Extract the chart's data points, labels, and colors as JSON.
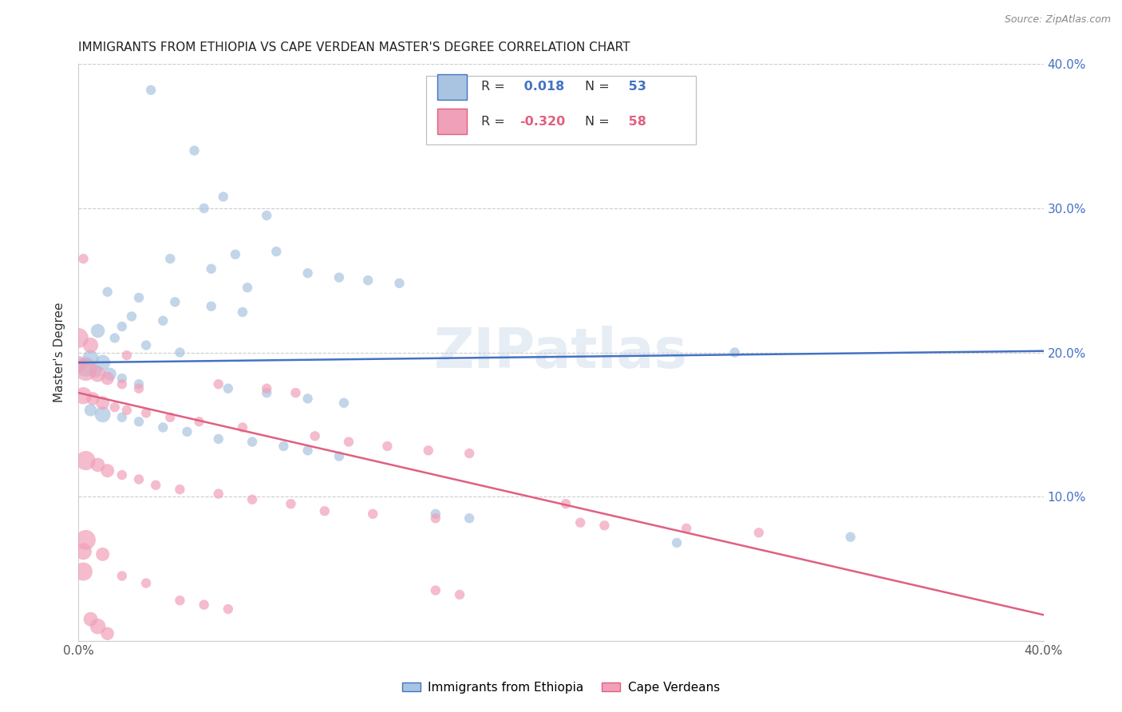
{
  "title": "IMMIGRANTS FROM ETHIOPIA VS CAPE VERDEAN MASTER'S DEGREE CORRELATION CHART",
  "source": "Source: ZipAtlas.com",
  "ylabel": "Master's Degree",
  "legend_label1": "Immigrants from Ethiopia",
  "legend_label2": "Cape Verdeans",
  "R1": 0.018,
  "N1": 53,
  "R2": -0.32,
  "N2": 58,
  "xlim": [
    0.0,
    0.4
  ],
  "ylim": [
    0.0,
    0.4
  ],
  "color_blue": "#a8c4e0",
  "color_pink": "#f0a0b8",
  "line_color_blue": "#4472c4",
  "line_color_pink": "#e06080",
  "watermark": "ZIPatlas",
  "blue_line": [
    0.0,
    0.193,
    0.4,
    0.201
  ],
  "pink_line": [
    0.0,
    0.172,
    0.4,
    0.018
  ],
  "blue_points": [
    [
      0.03,
      0.382
    ],
    [
      0.048,
      0.34
    ],
    [
      0.06,
      0.308
    ],
    [
      0.078,
      0.295
    ],
    [
      0.052,
      0.3
    ],
    [
      0.082,
      0.27
    ],
    [
      0.065,
      0.268
    ],
    [
      0.038,
      0.265
    ],
    [
      0.055,
      0.258
    ],
    [
      0.095,
      0.255
    ],
    [
      0.108,
      0.252
    ],
    [
      0.12,
      0.25
    ],
    [
      0.133,
      0.248
    ],
    [
      0.07,
      0.245
    ],
    [
      0.012,
      0.242
    ],
    [
      0.025,
      0.238
    ],
    [
      0.04,
      0.235
    ],
    [
      0.055,
      0.232
    ],
    [
      0.068,
      0.228
    ],
    [
      0.022,
      0.225
    ],
    [
      0.035,
      0.222
    ],
    [
      0.018,
      0.218
    ],
    [
      0.008,
      0.215
    ],
    [
      0.015,
      0.21
    ],
    [
      0.028,
      0.205
    ],
    [
      0.042,
      0.2
    ],
    [
      0.272,
      0.2
    ],
    [
      0.005,
      0.196
    ],
    [
      0.01,
      0.193
    ],
    [
      0.003,
      0.19
    ],
    [
      0.007,
      0.187
    ],
    [
      0.013,
      0.185
    ],
    [
      0.018,
      0.182
    ],
    [
      0.025,
      0.178
    ],
    [
      0.062,
      0.175
    ],
    [
      0.078,
      0.172
    ],
    [
      0.095,
      0.168
    ],
    [
      0.11,
      0.165
    ],
    [
      0.005,
      0.16
    ],
    [
      0.01,
      0.157
    ],
    [
      0.018,
      0.155
    ],
    [
      0.025,
      0.152
    ],
    [
      0.035,
      0.148
    ],
    [
      0.045,
      0.145
    ],
    [
      0.058,
      0.14
    ],
    [
      0.072,
      0.138
    ],
    [
      0.085,
      0.135
    ],
    [
      0.095,
      0.132
    ],
    [
      0.108,
      0.128
    ],
    [
      0.148,
      0.088
    ],
    [
      0.162,
      0.085
    ],
    [
      0.32,
      0.072
    ],
    [
      0.248,
      0.068
    ]
  ],
  "pink_points": [
    [
      0.002,
      0.265
    ],
    [
      0.0,
      0.21
    ],
    [
      0.005,
      0.205
    ],
    [
      0.02,
      0.198
    ],
    [
      0.0,
      0.192
    ],
    [
      0.003,
      0.188
    ],
    [
      0.008,
      0.185
    ],
    [
      0.012,
      0.182
    ],
    [
      0.018,
      0.178
    ],
    [
      0.025,
      0.175
    ],
    [
      0.002,
      0.17
    ],
    [
      0.006,
      0.168
    ],
    [
      0.01,
      0.165
    ],
    [
      0.015,
      0.162
    ],
    [
      0.02,
      0.16
    ],
    [
      0.028,
      0.158
    ],
    [
      0.038,
      0.155
    ],
    [
      0.05,
      0.152
    ],
    [
      0.068,
      0.148
    ],
    [
      0.058,
      0.178
    ],
    [
      0.078,
      0.175
    ],
    [
      0.09,
      0.172
    ],
    [
      0.098,
      0.142
    ],
    [
      0.112,
      0.138
    ],
    [
      0.128,
      0.135
    ],
    [
      0.145,
      0.132
    ],
    [
      0.162,
      0.13
    ],
    [
      0.003,
      0.125
    ],
    [
      0.008,
      0.122
    ],
    [
      0.012,
      0.118
    ],
    [
      0.018,
      0.115
    ],
    [
      0.025,
      0.112
    ],
    [
      0.032,
      0.108
    ],
    [
      0.042,
      0.105
    ],
    [
      0.058,
      0.102
    ],
    [
      0.072,
      0.098
    ],
    [
      0.088,
      0.095
    ],
    [
      0.202,
      0.095
    ],
    [
      0.102,
      0.09
    ],
    [
      0.122,
      0.088
    ],
    [
      0.148,
      0.085
    ],
    [
      0.208,
      0.082
    ],
    [
      0.218,
      0.08
    ],
    [
      0.252,
      0.078
    ],
    [
      0.282,
      0.075
    ],
    [
      0.003,
      0.07
    ],
    [
      0.002,
      0.062
    ],
    [
      0.01,
      0.06
    ],
    [
      0.002,
      0.048
    ],
    [
      0.018,
      0.045
    ],
    [
      0.028,
      0.04
    ],
    [
      0.148,
      0.035
    ],
    [
      0.158,
      0.032
    ],
    [
      0.042,
      0.028
    ],
    [
      0.052,
      0.025
    ],
    [
      0.062,
      0.022
    ],
    [
      0.005,
      0.015
    ],
    [
      0.008,
      0.01
    ],
    [
      0.012,
      0.005
    ]
  ]
}
